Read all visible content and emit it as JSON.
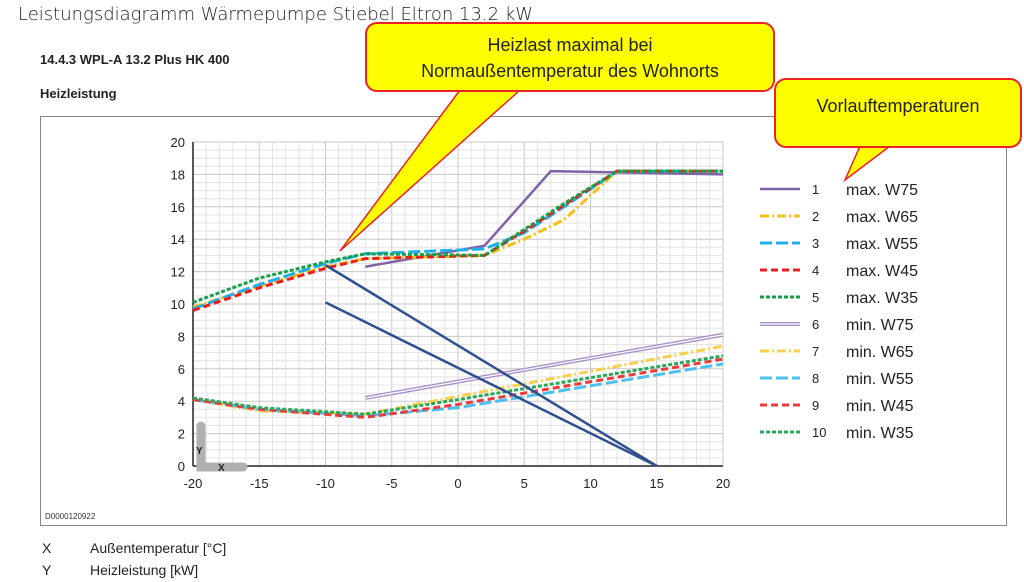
{
  "page_title": "Leistungsdiagramm  Wärmepumpe Stiebel Eltron 13.2 kW",
  "section": "14.4.3  WPL-A 13.2 Plus HK 400",
  "subtitle": "Heizleistung",
  "figure_code": "D0000120922",
  "axis_legend": [
    {
      "key": "X",
      "label": "Außentemperatur [°C]"
    },
    {
      "key": "Y",
      "label": "Heizleistung [kW]"
    }
  ],
  "callouts": {
    "heizlast_line1": "Heizlast maximal bei",
    "heizlast_line2": "Normaußentemperatur des Wohnorts",
    "vorlauf": "Vorlauftemperaturen"
  },
  "chart_data": {
    "type": "line",
    "xlabel": "X",
    "ylabel": "Y",
    "xlim": [
      -20,
      20
    ],
    "ylim": [
      0,
      20
    ],
    "xticks": [
      -20,
      -15,
      -10,
      -5,
      0,
      5,
      10,
      15,
      20
    ],
    "yticks": [
      0,
      2,
      4,
      6,
      8,
      10,
      12,
      14,
      16,
      18,
      20
    ],
    "grid": true,
    "legend_placement": "right",
    "series": [
      {
        "id": "1",
        "name": "max. W75",
        "color": "#7e63a8",
        "style": "solid",
        "points": [
          [
            -7,
            12.3
          ],
          [
            2,
            13.6
          ],
          [
            7,
            18.2
          ],
          [
            20,
            18.0
          ]
        ]
      },
      {
        "id": "2",
        "name": "max. W65",
        "color": "#f5c018",
        "style": "dashdot",
        "points": [
          [
            -20,
            9.8
          ],
          [
            -15,
            11.1
          ],
          [
            -10,
            12.3
          ],
          [
            -7,
            12.8
          ],
          [
            2,
            13.0
          ],
          [
            5,
            14.0
          ],
          [
            8,
            15.2
          ],
          [
            12,
            18.2
          ],
          [
            20,
            18.2
          ]
        ]
      },
      {
        "id": "3",
        "name": "max. W55",
        "color": "#1fb0ea",
        "style": "longdash",
        "points": [
          [
            -20,
            9.7
          ],
          [
            -15,
            11.2
          ],
          [
            -10,
            12.5
          ],
          [
            -7,
            13.1
          ],
          [
            2,
            13.4
          ],
          [
            5,
            14.4
          ],
          [
            8,
            16.0
          ],
          [
            12,
            18.2
          ],
          [
            20,
            18.2
          ]
        ]
      },
      {
        "id": "4",
        "name": "max. W45",
        "color": "#ee1c1c",
        "style": "dash",
        "points": [
          [
            -20,
            9.6
          ],
          [
            -15,
            11.0
          ],
          [
            -10,
            12.2
          ],
          [
            -7,
            12.8
          ],
          [
            2,
            13.0
          ],
          [
            5,
            14.5
          ],
          [
            8,
            16.1
          ],
          [
            12,
            18.2
          ],
          [
            20,
            18.2
          ]
        ]
      },
      {
        "id": "5",
        "name": "max. W35",
        "color": "#16a04a",
        "style": "dot",
        "points": [
          [
            -20,
            10.1
          ],
          [
            -15,
            11.6
          ],
          [
            -10,
            12.6
          ],
          [
            -7,
            13.1
          ],
          [
            2,
            13.0
          ],
          [
            5,
            14.6
          ],
          [
            8,
            16.2
          ],
          [
            12,
            18.2
          ],
          [
            20,
            18.2
          ]
        ]
      },
      {
        "id": "6",
        "name": "min. W75",
        "color": "#a78fc8",
        "style": "double",
        "points": [
          [
            -7,
            4.2
          ],
          [
            20,
            8.1
          ]
        ]
      },
      {
        "id": "7",
        "name": "min. W65",
        "color": "#f8d04a",
        "style": "dashdot",
        "points": [
          [
            -20,
            4.1
          ],
          [
            -15,
            3.4
          ],
          [
            -7,
            3.2
          ],
          [
            0,
            4.3
          ],
          [
            20,
            7.4
          ]
        ]
      },
      {
        "id": "8",
        "name": "min. W55",
        "color": "#4dc0ef",
        "style": "longdash",
        "points": [
          [
            -20,
            4.1
          ],
          [
            -15,
            3.5
          ],
          [
            -7,
            3.1
          ],
          [
            0,
            3.6
          ],
          [
            20,
            6.3
          ]
        ]
      },
      {
        "id": "9",
        "name": "min. W45",
        "color": "#ee3a3a",
        "style": "dash",
        "points": [
          [
            -20,
            4.1
          ],
          [
            -15,
            3.5
          ],
          [
            -7,
            3.0
          ],
          [
            0,
            3.8
          ],
          [
            20,
            6.6
          ]
        ]
      },
      {
        "id": "10",
        "name": "min. W35",
        "color": "#2aa85a",
        "style": "dot",
        "points": [
          [
            -20,
            4.2
          ],
          [
            -15,
            3.6
          ],
          [
            -7,
            3.2
          ],
          [
            0,
            4.1
          ],
          [
            20,
            6.8
          ]
        ]
      }
    ],
    "annotation_lines": [
      {
        "color": "#2f4f8f",
        "points": [
          [
            -10,
            12.4
          ],
          [
            15,
            0
          ]
        ]
      },
      {
        "color": "#2f4f8f",
        "points": [
          [
            -10,
            10.1
          ],
          [
            15,
            0
          ]
        ]
      }
    ]
  }
}
